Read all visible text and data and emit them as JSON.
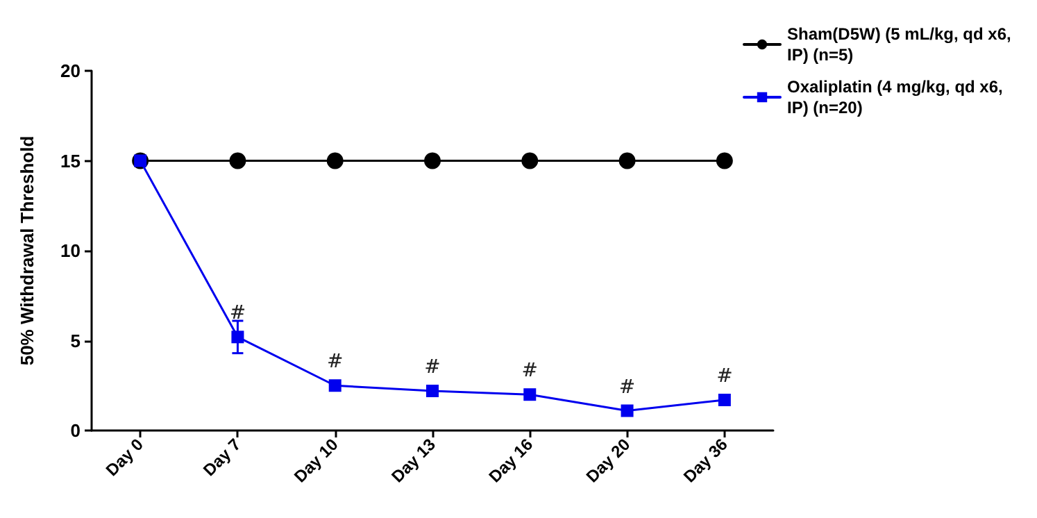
{
  "chart_data": {
    "type": "line",
    "ylabel": "50% Withdrawal Threshold",
    "categories": [
      "Day 0",
      "Day 7",
      "Day 10",
      "Day 13",
      "Day 16",
      "Day 20",
      "Day 36"
    ],
    "series": [
      {
        "name": "Sham(D5W) (5 mL/kg, qd x6, IP) (n=5)",
        "color": "#000000",
        "marker": "circle",
        "values": [
          15,
          15,
          15,
          15,
          15,
          15,
          15
        ]
      },
      {
        "name": "Oxaliplatin (4 mg/kg, qd x6, IP) (n=20)",
        "color": "#0000ee",
        "marker": "square",
        "values": [
          15,
          5.2,
          2.5,
          2.2,
          2.0,
          1.1,
          1.7
        ],
        "errors": [
          null,
          0.9,
          null,
          null,
          null,
          null,
          null
        ]
      }
    ],
    "annotations": [
      {
        "text": "#",
        "x": "Day 7",
        "y": 5.2
      },
      {
        "text": "#",
        "x": "Day 10",
        "y": 2.5
      },
      {
        "text": "#",
        "x": "Day 13",
        "y": 2.2
      },
      {
        "text": "#",
        "x": "Day 16",
        "y": 2.0
      },
      {
        "text": "#",
        "x": "Day 20",
        "y": 1.1
      },
      {
        "text": "#",
        "x": "Day 36",
        "y": 1.7
      }
    ],
    "ylim": [
      0,
      20
    ],
    "yticks": [
      0,
      5,
      10,
      15,
      20
    ],
    "grid": false,
    "legend": "top right"
  }
}
